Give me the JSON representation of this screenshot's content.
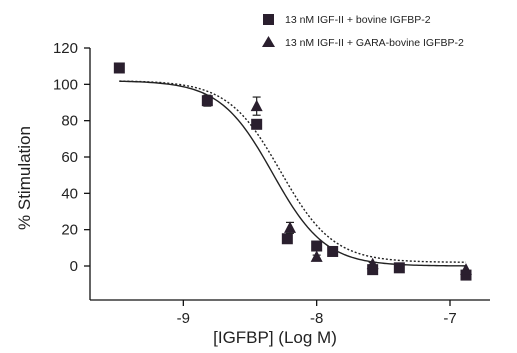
{
  "chart_data": {
    "type": "scatter",
    "xlabel": "[IGFBP] (Log M)",
    "ylabel": "% Stimulation",
    "xlim": [
      -9.7,
      -6.7
    ],
    "ylim": [
      -10,
      120
    ],
    "xticks": [
      -9,
      -8,
      -7
    ],
    "xtick_labels": [
      "-9",
      "-8",
      "-7"
    ],
    "yticks": [
      0,
      20,
      40,
      60,
      80,
      100,
      120
    ],
    "ytick_labels": [
      "0",
      "20",
      "40",
      "60",
      "80",
      "100",
      "120"
    ],
    "legend_position": "top-right",
    "series": [
      {
        "name": "13 nM IGF-II + bovine IGFBP-2",
        "marker": "square",
        "color": "#2a1f2e",
        "curve": "solid",
        "fit": {
          "top": 102,
          "bottom": 0,
          "log_ec50": -8.33,
          "hill": -2.2
        },
        "points": [
          {
            "x": -9.48,
            "y": 109,
            "err": 0
          },
          {
            "x": -8.82,
            "y": 91,
            "err": 3
          },
          {
            "x": -8.45,
            "y": 78,
            "err": 2
          },
          {
            "x": -8.22,
            "y": 15,
            "err": 2
          },
          {
            "x": -8.0,
            "y": 11,
            "err": 1
          },
          {
            "x": -7.88,
            "y": 8,
            "err": 1
          },
          {
            "x": -7.58,
            "y": -2,
            "err": 1
          },
          {
            "x": -7.38,
            "y": -1,
            "err": 0
          },
          {
            "x": -6.88,
            "y": -5,
            "err": 0
          }
        ]
      },
      {
        "name": "13 nM IGF-II + GARA-bovine IGFBP-2",
        "marker": "triangle",
        "color": "#2a1f2e",
        "curve": "dotted",
        "fit": {
          "top": 102,
          "bottom": 2,
          "log_ec50": -8.27,
          "hill": -2.2
        },
        "points": [
          {
            "x": -8.45,
            "y": 88,
            "err": 5
          },
          {
            "x": -8.2,
            "y": 21,
            "err": 3
          },
          {
            "x": -8.0,
            "y": 5,
            "err": 1
          },
          {
            "x": -7.58,
            "y": 1,
            "err": 1
          },
          {
            "x": -6.88,
            "y": -2,
            "err": 0
          }
        ]
      }
    ]
  }
}
